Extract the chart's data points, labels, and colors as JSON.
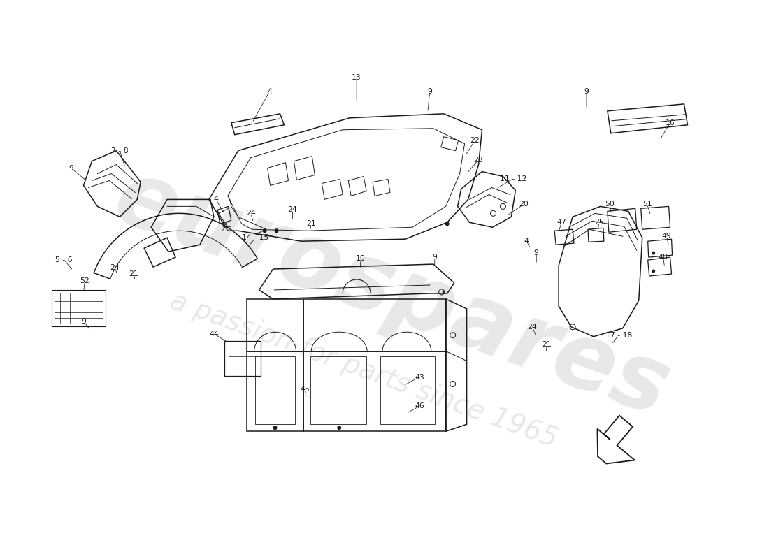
{
  "bg_color": "#ffffff",
  "line_color": "#1a1a1a",
  "watermark_text1": "eurospares",
  "watermark_text2": "a passion for parts since 1965",
  "labels": [
    [
      "4",
      385,
      130,
      360,
      175,
      true
    ],
    [
      "13",
      510,
      110,
      510,
      145,
      true
    ],
    [
      "9",
      615,
      130,
      612,
      160,
      true
    ],
    [
      "9",
      840,
      130,
      840,
      155,
      true
    ],
    [
      "16",
      960,
      175,
      945,
      200,
      true
    ],
    [
      "7 - 8",
      170,
      215,
      178,
      240,
      true
    ],
    [
      "9",
      100,
      240,
      122,
      258,
      true
    ],
    [
      "22",
      680,
      200,
      666,
      222,
      true
    ],
    [
      "23",
      685,
      228,
      668,
      248,
      true
    ],
    [
      "11 - 12",
      735,
      255,
      710,
      270,
      true
    ],
    [
      "4",
      308,
      285,
      320,
      305,
      true
    ],
    [
      "24",
      358,
      305,
      362,
      318,
      true
    ],
    [
      "21",
      323,
      322,
      315,
      333,
      true
    ],
    [
      "24",
      418,
      300,
      418,
      316,
      true
    ],
    [
      "21",
      445,
      320,
      443,
      330,
      true
    ],
    [
      "14 - 15",
      365,
      340,
      355,
      352,
      true
    ],
    [
      "20",
      750,
      292,
      726,
      308,
      true
    ],
    [
      "50",
      873,
      292,
      876,
      306,
      true
    ],
    [
      "51",
      927,
      292,
      932,
      308,
      true
    ],
    [
      "47",
      804,
      318,
      800,
      332,
      true
    ],
    [
      "25",
      858,
      318,
      856,
      332,
      true
    ],
    [
      "4",
      754,
      345,
      760,
      356,
      true
    ],
    [
      "49",
      955,
      338,
      958,
      352,
      true
    ],
    [
      "48",
      950,
      368,
      952,
      382,
      true
    ],
    [
      "21",
      190,
      392,
      192,
      402,
      true
    ],
    [
      "24",
      163,
      383,
      167,
      394,
      true
    ],
    [
      "10",
      516,
      370,
      515,
      385,
      true
    ],
    [
      "9",
      622,
      368,
      622,
      382,
      true
    ],
    [
      "9",
      768,
      362,
      768,
      378,
      true
    ],
    [
      "5 - 6",
      90,
      372,
      103,
      387,
      true
    ],
    [
      "52",
      120,
      402,
      118,
      418,
      true
    ],
    [
      "9",
      118,
      460,
      128,
      473,
      true
    ],
    [
      "44",
      305,
      478,
      325,
      490,
      true
    ],
    [
      "24",
      762,
      468,
      768,
      482,
      true
    ],
    [
      "21",
      783,
      493,
      782,
      505,
      true
    ],
    [
      "17 - 18",
      886,
      480,
      876,
      493,
      true
    ],
    [
      "43",
      600,
      540,
      578,
      552,
      true
    ],
    [
      "45",
      436,
      558,
      438,
      570,
      true
    ],
    [
      "46",
      600,
      582,
      582,
      592,
      true
    ]
  ]
}
